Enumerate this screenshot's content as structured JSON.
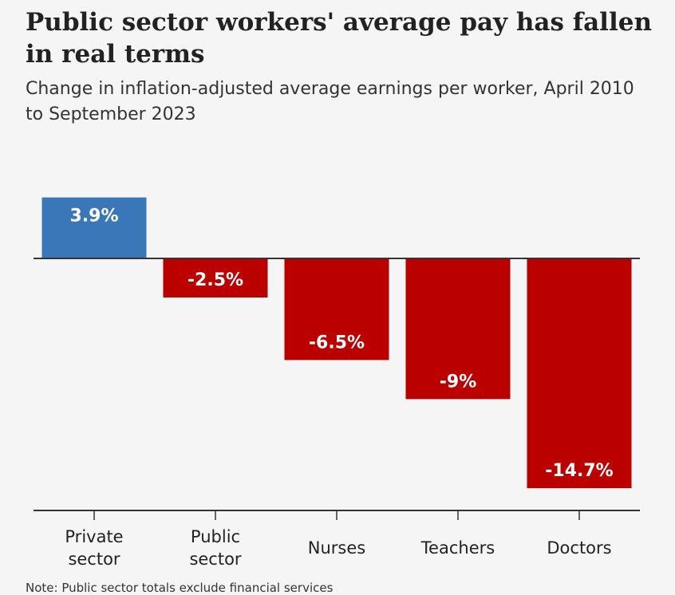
{
  "title": "Public sector workers' average pay has fallen in real terms",
  "subtitle": "Change in inflation-adjusted average earnings per worker, April 2010 to September 2023",
  "note": "Note: Public sector totals exclude financial services",
  "chart_data": {
    "type": "bar",
    "categories": [
      "Private sector",
      "Public sector",
      "Nurses",
      "Teachers",
      "Doctors"
    ],
    "category_lines": [
      [
        "Private",
        "sector"
      ],
      [
        "Public",
        "sector"
      ],
      [
        "Nurses"
      ],
      [
        "Teachers"
      ],
      [
        "Doctors"
      ]
    ],
    "values": [
      3.9,
      -2.5,
      -6.5,
      -9,
      -14.7
    ],
    "data_labels": [
      "3.9%",
      "-2.5%",
      "-6.5%",
      "-9%",
      "-14.7%"
    ],
    "colors": {
      "positive": "#3a77b9",
      "negative": "#bb0000"
    },
    "ylim": [
      -16,
      6
    ],
    "grid": false
  }
}
